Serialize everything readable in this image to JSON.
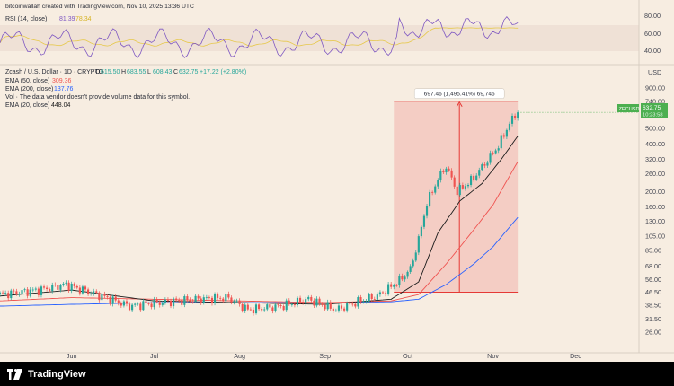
{
  "header": {
    "watermark": "bitcoinwallah created with TradingView.com, Nov 10, 2025 13:36 UTC"
  },
  "rsi": {
    "label": "RSI (14, close)",
    "value1": "81.39",
    "value2": "78.34",
    "ticks": [
      "80.00",
      "60.00",
      "40.00"
    ],
    "color": "#7e57c2",
    "ma_color": "#e6c84a"
  },
  "legend": {
    "symbol": "Zcash / U.S. Dollar · 1D · CRYPTO",
    "o_label": "O",
    "o": "615.50",
    "h_label": "H",
    "h": "683.55",
    "l_label": "L",
    "l": "608.43",
    "c_label": "C",
    "c": "632.75",
    "change": "+17.22 (+2.80%)",
    "ema50": {
      "label": "EMA (50, close)",
      "value": "309.36",
      "color": "#ef5350"
    },
    "ema200": {
      "label": "EMA (200, close)",
      "value": "137.76",
      "color": "#2962ff"
    },
    "vol": "Vol · The data vendor doesn't provide volume data for this symbol.",
    "ema20": {
      "label": "EMA (20, close)",
      "value": "448.04",
      "color": "#1b1b1b"
    }
  },
  "measure": {
    "label": "697.46 (1,495.41%) 69,746",
    "fill": "#f3b3ad",
    "line": "#e53935"
  },
  "price_axis": {
    "currency": "USD",
    "ticks": [
      "900.00",
      "740.00",
      "640.00",
      "500.00",
      "400.00",
      "320.00",
      "260.00",
      "200.00",
      "160.00",
      "130.00",
      "105.00",
      "85.00",
      "68.00",
      "56.00",
      "46.50",
      "38.50",
      "31.50",
      "26.00"
    ],
    "current_symbol": "ZECUSD",
    "current_price": "632.75",
    "countdown": "10:23:58",
    "badge_color": "#4caf50"
  },
  "time_axis": {
    "labels": [
      "Jun",
      "Jul",
      "Aug",
      "Sep",
      "Oct",
      "Nov",
      "Dec"
    ]
  },
  "footer": {
    "brand": "TradingView"
  },
  "chart_data": {
    "type": "candlestick",
    "symbol": "ZECUSD",
    "interval": "1D",
    "scale": "log",
    "x_range": [
      "2025-05-06",
      "2025-12-24"
    ],
    "y_range": [
      22,
      1000
    ],
    "up_color": "#26a69a",
    "down_color": "#ef5350",
    "anchors": [
      [
        "2025-05-06",
        45
      ],
      [
        "2025-05-20",
        48
      ],
      [
        "2025-05-30",
        52
      ],
      [
        "2025-06-12",
        44
      ],
      [
        "2025-06-22",
        38
      ],
      [
        "2025-07-02",
        40
      ],
      [
        "2025-07-16",
        42
      ],
      [
        "2025-07-28",
        43
      ],
      [
        "2025-08-04",
        36
      ],
      [
        "2025-08-16",
        38
      ],
      [
        "2025-08-26",
        42
      ],
      [
        "2025-09-05",
        36
      ],
      [
        "2025-09-12",
        40
      ],
      [
        "2025-09-20",
        44
      ],
      [
        "2025-09-28",
        55
      ],
      [
        "2025-10-02",
        65
      ],
      [
        "2025-10-05",
        100
      ],
      [
        "2025-10-08",
        170
      ],
      [
        "2025-10-12",
        240
      ],
      [
        "2025-10-15",
        290
      ],
      [
        "2025-10-19",
        200
      ],
      [
        "2025-10-24",
        235
      ],
      [
        "2025-10-29",
        300
      ],
      [
        "2025-11-03",
        390
      ],
      [
        "2025-11-07",
        540
      ],
      [
        "2025-11-10",
        632.75
      ]
    ],
    "ema20": [
      [
        "2025-05-06",
        44
      ],
      [
        "2025-06-01",
        48
      ],
      [
        "2025-07-01",
        41
      ],
      [
        "2025-08-01",
        40
      ],
      [
        "2025-09-01",
        39
      ],
      [
        "2025-09-25",
        42
      ],
      [
        "2025-10-05",
        54
      ],
      [
        "2025-10-12",
        110
      ],
      [
        "2025-10-20",
        175
      ],
      [
        "2025-10-28",
        225
      ],
      [
        "2025-11-04",
        320
      ],
      [
        "2025-11-10",
        448.04
      ]
    ],
    "ema50": [
      [
        "2025-05-06",
        41
      ],
      [
        "2025-06-01",
        43
      ],
      [
        "2025-07-01",
        42
      ],
      [
        "2025-08-01",
        41
      ],
      [
        "2025-09-01",
        40
      ],
      [
        "2025-09-25",
        41
      ],
      [
        "2025-10-05",
        45
      ],
      [
        "2025-10-15",
        70
      ],
      [
        "2025-10-25",
        115
      ],
      [
        "2025-11-01",
        165
      ],
      [
        "2025-11-10",
        309.36
      ]
    ],
    "ema200": [
      [
        "2025-05-06",
        38
      ],
      [
        "2025-06-01",
        39
      ],
      [
        "2025-07-01",
        40
      ],
      [
        "2025-08-01",
        40
      ],
      [
        "2025-09-01",
        40
      ],
      [
        "2025-09-25",
        40.5
      ],
      [
        "2025-10-05",
        42
      ],
      [
        "2025-10-15",
        52
      ],
      [
        "2025-10-25",
        70
      ],
      [
        "2025-11-01",
        90
      ],
      [
        "2025-11-10",
        137.76
      ]
    ],
    "measure_box": {
      "x_start": "2025-09-26",
      "x_end": "2025-11-10",
      "y_low": 46.5,
      "y_high": 744
    }
  }
}
